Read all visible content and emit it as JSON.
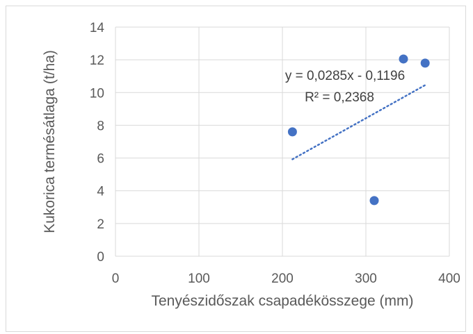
{
  "chart_data": {
    "type": "scatter",
    "title": "",
    "xlabel": "Tenyészidőszak csapadékösszege (mm)",
    "ylabel": "Kukorica termésátlaga (t/ha)",
    "xlim": [
      0,
      400
    ],
    "ylim": [
      0,
      14
    ],
    "xticks": [
      "0",
      "100",
      "200",
      "300",
      "400"
    ],
    "yticks": [
      "0",
      "2",
      "4",
      "6",
      "8",
      "10",
      "12",
      "14"
    ],
    "grid": true,
    "legend": "none",
    "marker_color": "#4472C4",
    "points": [
      {
        "x": 212,
        "y": 7.6
      },
      {
        "x": 310,
        "y": 3.4
      },
      {
        "x": 345,
        "y": 12.05
      },
      {
        "x": 371,
        "y": 11.8
      }
    ],
    "trendline": {
      "style": "dotted",
      "slope": 0.0285,
      "intercept": -0.1196,
      "x_range": [
        212,
        371
      ],
      "equation": "y = 0,0285x - 0,1196",
      "r_squared": "R² = 0,2368"
    }
  }
}
